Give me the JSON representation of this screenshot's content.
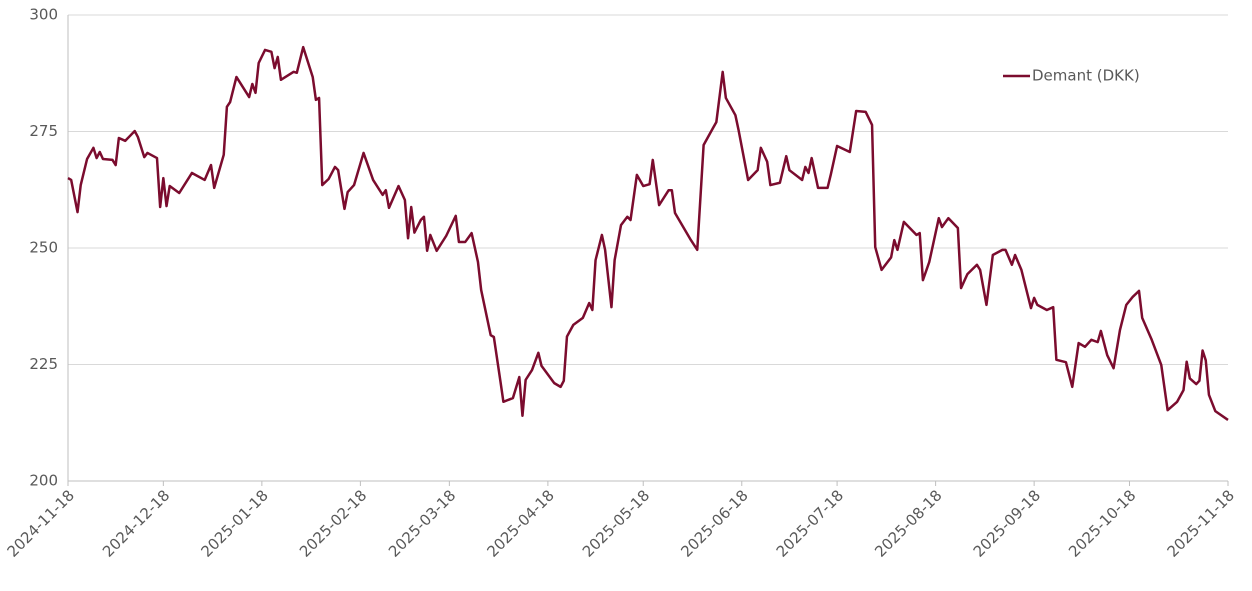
{
  "chart_data": {
    "type": "line",
    "x": [
      "2024-11-18",
      "2024-11-19",
      "2024-11-21",
      "2024-11-22",
      "2024-11-24",
      "2024-11-26",
      "2024-11-27",
      "2024-11-28",
      "2024-11-29",
      "2024-12-02",
      "2024-12-03",
      "2024-12-04",
      "2024-12-06",
      "2024-12-09",
      "2024-12-10",
      "2024-12-12",
      "2024-12-13",
      "2024-12-16",
      "2024-12-17",
      "2024-12-18",
      "2024-12-19",
      "2024-12-20",
      "2024-12-23",
      "2024-12-27",
      "2024-12-31",
      "2025-01-02",
      "2025-01-03",
      "2025-01-06",
      "2025-01-07",
      "2025-01-08",
      "2025-01-10",
      "2025-01-14",
      "2025-01-15",
      "2025-01-16",
      "2025-01-17",
      "2025-01-19",
      "2025-01-21",
      "2025-01-22",
      "2025-01-23",
      "2025-01-24",
      "2025-01-28",
      "2025-01-29",
      "2025-01-31",
      "2025-02-03",
      "2025-02-04",
      "2025-02-05",
      "2025-02-06",
      "2025-02-08",
      "2025-02-10",
      "2025-02-11",
      "2025-02-13",
      "2025-02-14",
      "2025-02-16",
      "2025-02-19",
      "2025-02-22",
      "2025-02-25",
      "2025-02-26",
      "2025-02-27",
      "2025-03-02",
      "2025-03-04",
      "2025-03-05",
      "2025-03-06",
      "2025-03-07",
      "2025-03-09",
      "2025-03-10",
      "2025-03-11",
      "2025-03-12",
      "2025-03-14",
      "2025-03-17",
      "2025-03-20",
      "2025-03-21",
      "2025-03-23",
      "2025-03-25",
      "2025-03-27",
      "2025-03-28",
      "2025-03-31",
      "2025-04-01",
      "2025-04-03",
      "2025-04-04",
      "2025-04-07",
      "2025-04-09",
      "2025-04-10",
      "2025-04-11",
      "2025-04-13",
      "2025-04-15",
      "2025-04-16",
      "2025-04-20",
      "2025-04-22",
      "2025-04-23",
      "2025-04-24",
      "2025-04-26",
      "2025-04-29",
      "2025-05-01",
      "2025-05-02",
      "2025-05-03",
      "2025-05-05",
      "2025-05-06",
      "2025-05-08",
      "2025-05-09",
      "2025-05-11",
      "2025-05-13",
      "2025-05-14",
      "2025-05-16",
      "2025-05-18",
      "2025-05-20",
      "2025-05-21",
      "2025-05-23",
      "2025-05-26",
      "2025-05-27",
      "2025-05-28",
      "2025-06-02",
      "2025-06-04",
      "2025-06-06",
      "2025-06-09",
      "2025-06-10",
      "2025-06-12",
      "2025-06-13",
      "2025-06-16",
      "2025-06-17",
      "2025-06-20",
      "2025-06-23",
      "2025-06-24",
      "2025-06-26",
      "2025-06-27",
      "2025-06-30",
      "2025-07-02",
      "2025-07-03",
      "2025-07-07",
      "2025-07-08",
      "2025-07-09",
      "2025-07-10",
      "2025-07-12",
      "2025-07-15",
      "2025-07-16",
      "2025-07-18",
      "2025-07-22",
      "2025-07-24",
      "2025-07-27",
      "2025-07-29",
      "2025-07-30",
      "2025-08-01",
      "2025-08-04",
      "2025-08-05",
      "2025-08-06",
      "2025-08-08",
      "2025-08-12",
      "2025-08-13",
      "2025-08-14",
      "2025-08-16",
      "2025-08-19",
      "2025-08-20",
      "2025-08-22",
      "2025-08-25",
      "2025-08-26",
      "2025-08-28",
      "2025-08-31",
      "2025-09-01",
      "2025-09-03",
      "2025-09-05",
      "2025-09-08",
      "2025-09-09",
      "2025-09-11",
      "2025-09-12",
      "2025-09-14",
      "2025-09-17",
      "2025-09-18",
      "2025-09-19",
      "2025-09-22",
      "2025-09-24",
      "2025-09-25",
      "2025-09-28",
      "2025-09-30",
      "2025-10-02",
      "2025-10-04",
      "2025-10-06",
      "2025-10-08",
      "2025-10-09",
      "2025-10-11",
      "2025-10-13",
      "2025-10-15",
      "2025-10-17",
      "2025-10-19",
      "2025-10-21",
      "2025-10-22",
      "2025-10-25",
      "2025-10-28",
      "2025-10-30",
      "2025-11-02",
      "2025-11-04",
      "2025-11-05",
      "2025-11-06",
      "2025-11-08",
      "2025-11-09",
      "2025-11-10",
      "2025-11-11",
      "2025-11-12",
      "2025-11-14",
      "2025-11-18"
    ],
    "series": [
      {
        "name": "Demant (DKK)",
        "color": "#7b0c2e",
        "values": [
          265.0,
          264.6,
          257.7,
          263.5,
          269.1,
          271.5,
          269.3,
          270.6,
          269.1,
          268.9,
          267.8,
          273.6,
          273.0,
          275.1,
          273.8,
          269.5,
          270.4,
          269.3,
          258.8,
          265.0,
          259.0,
          263.3,
          261.8,
          266.1,
          264.6,
          267.8,
          262.9,
          270.0,
          280.3,
          281.3,
          286.7,
          282.4,
          285.2,
          283.3,
          289.7,
          292.5,
          292.1,
          288.6,
          291.0,
          286.1,
          287.8,
          287.6,
          293.1,
          286.7,
          281.8,
          282.2,
          263.5,
          264.8,
          267.4,
          266.7,
          258.4,
          262.0,
          263.5,
          270.4,
          264.6,
          261.4,
          262.4,
          258.6,
          263.3,
          260.3,
          252.1,
          258.8,
          253.3,
          256.0,
          256.7,
          249.4,
          252.8,
          249.4,
          252.6,
          256.9,
          251.3,
          251.3,
          253.2,
          247.0,
          241.0,
          231.3,
          230.9,
          221.7,
          217.0,
          217.8,
          222.3,
          214.0,
          221.7,
          223.8,
          227.5,
          224.7,
          221.0,
          220.2,
          221.5,
          231.0,
          233.5,
          235.0,
          238.2,
          236.7,
          247.4,
          252.8,
          249.6,
          237.3,
          247.4,
          254.9,
          256.7,
          256.0,
          265.7,
          263.3,
          263.7,
          268.9,
          259.2,
          262.4,
          262.4,
          257.5,
          251.7,
          249.6,
          272.1,
          275.8,
          277.0,
          287.8,
          282.2,
          278.5,
          275.3,
          264.6,
          266.7,
          271.5,
          268.5,
          263.5,
          264.0,
          269.7,
          266.7,
          264.6,
          267.4,
          266.1,
          269.3,
          262.9,
          262.9,
          265.7,
          271.9,
          270.6,
          279.4,
          279.2,
          276.4,
          250.2,
          245.3,
          248.0,
          251.7,
          249.6,
          255.6,
          252.8,
          253.2,
          243.1,
          247.0,
          256.4,
          254.5,
          256.4,
          254.3,
          241.4,
          244.4,
          246.4,
          245.3,
          237.8,
          248.5,
          249.6,
          249.6,
          246.4,
          248.5,
          245.3,
          237.1,
          239.3,
          237.8,
          236.7,
          237.3,
          226.0,
          225.5,
          220.2,
          229.6,
          228.8,
          230.3,
          229.8,
          232.2,
          227.0,
          224.2,
          232.4,
          237.8,
          239.5,
          240.8,
          235.0,
          230.3,
          224.9,
          215.2,
          217.0,
          219.5,
          225.6,
          222.0,
          220.8,
          221.5,
          228.0,
          225.9,
          218.5,
          215.0,
          213.1
        ]
      }
    ],
    "xlim": [
      "2024-11-18",
      "2025-11-18"
    ],
    "xticks": [
      "2024-11-18",
      "2024-12-18",
      "2025-01-18",
      "2025-02-18",
      "2025-03-18",
      "2025-04-18",
      "2025-05-18",
      "2025-06-18",
      "2025-07-18",
      "2025-08-18",
      "2025-09-18",
      "2025-10-18",
      "2025-11-18"
    ],
    "ylim": [
      200,
      300
    ],
    "yticks": [
      200,
      225,
      250,
      275,
      300
    ],
    "grid": true,
    "legend": "upper right"
  }
}
